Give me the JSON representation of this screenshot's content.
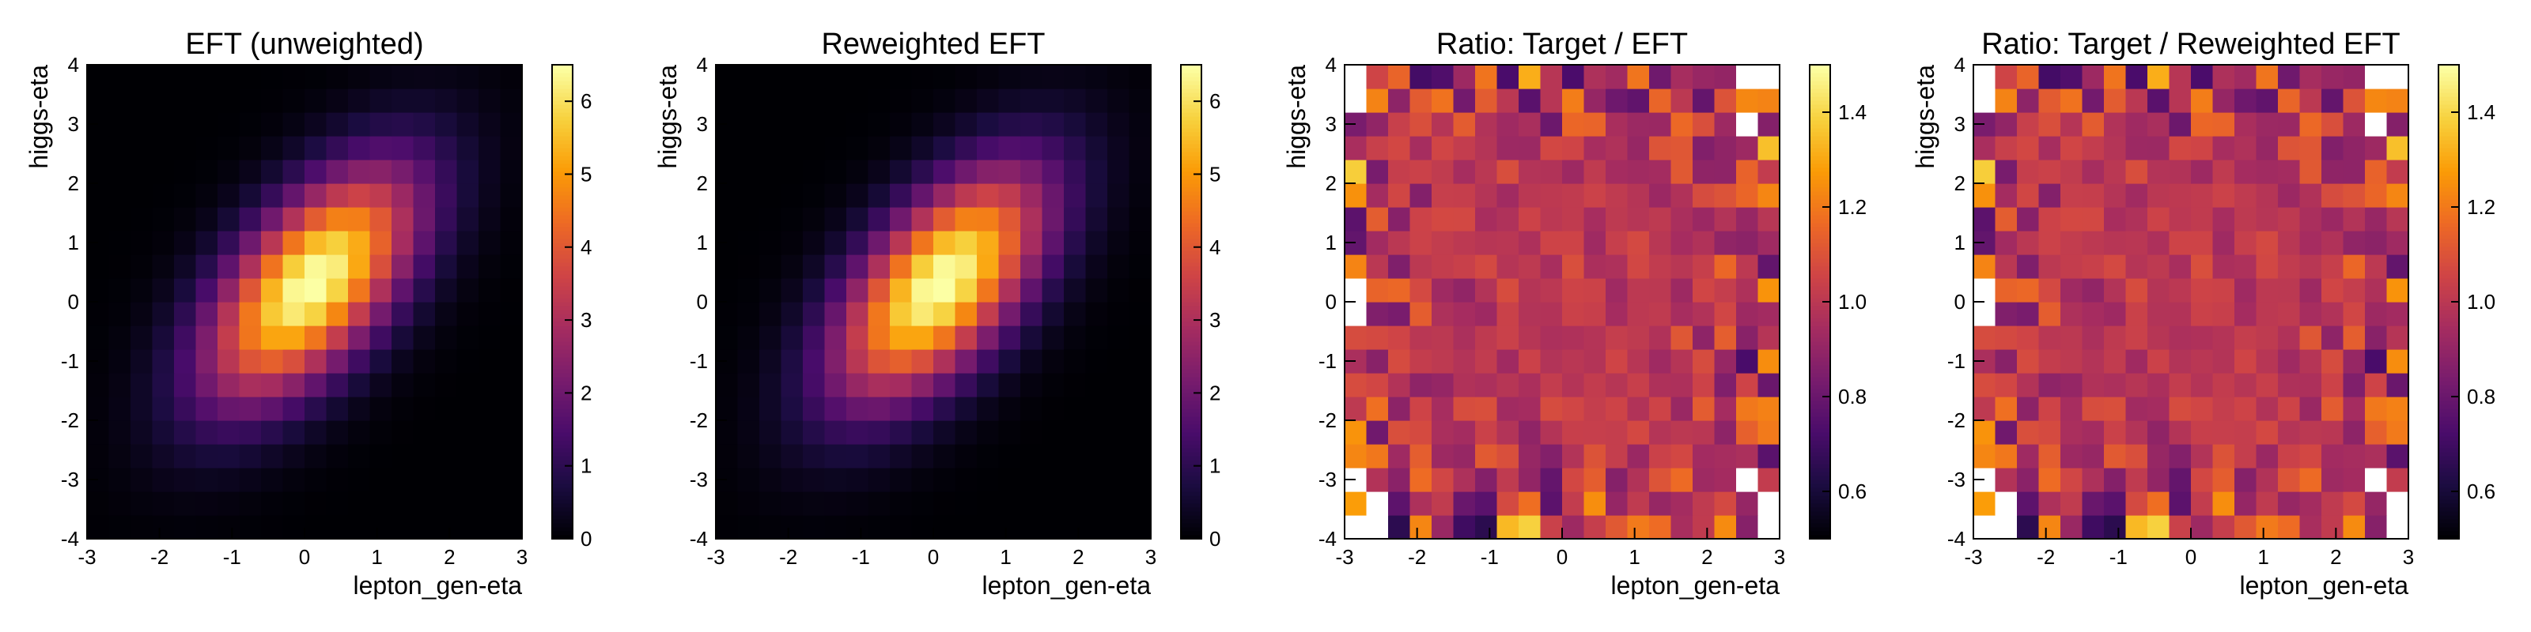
{
  "figure": {
    "colormap": "inferno",
    "colormap_stops": [
      "#000004",
      "#1b0c41",
      "#4a0c6b",
      "#781c6d",
      "#a52c60",
      "#cf4446",
      "#ed6925",
      "#fb9b06",
      "#f7d13d",
      "#fcffa4"
    ],
    "outside_range_color": "#ffffff"
  },
  "chart_data": [
    {
      "type": "heatmap",
      "title": "EFT (unweighted)",
      "xlabel": "lepton_gen-eta",
      "ylabel": "higgs-eta",
      "xlim": [
        -3,
        3
      ],
      "ylim": [
        -4,
        4
      ],
      "xticks": [
        -3,
        -2,
        -1,
        0,
        1,
        2,
        3
      ],
      "yticks": [
        -4,
        -3,
        -2,
        -1,
        0,
        1,
        2,
        3,
        4
      ],
      "bins": {
        "nx": 20,
        "ny": 20
      },
      "zlim": [
        0,
        6.5
      ],
      "colorbar_ticks": [
        0,
        1,
        2,
        3,
        4,
        5,
        6
      ],
      "model": "correlated_gaussian",
      "peak_value": 6.6,
      "mean_x": 0.1,
      "mean_y": 0.3,
      "sigma_x": 1.0,
      "sigma_y": 1.35,
      "rho": 0.6
    },
    {
      "type": "heatmap",
      "title": "Reweighted EFT",
      "xlabel": "lepton_gen-eta",
      "ylabel": "higgs-eta",
      "xlim": [
        -3,
        3
      ],
      "ylim": [
        -4,
        4
      ],
      "xticks": [
        -3,
        -2,
        -1,
        0,
        1,
        2,
        3
      ],
      "yticks": [
        -4,
        -3,
        -2,
        -1,
        0,
        1,
        2,
        3,
        4
      ],
      "bins": {
        "nx": 20,
        "ny": 20
      },
      "zlim": [
        0,
        6.5
      ],
      "colorbar_ticks": [
        0,
        1,
        2,
        3,
        4,
        5,
        6
      ],
      "model": "correlated_gaussian",
      "peak_value": 6.6,
      "mean_x": 0.1,
      "mean_y": 0.3,
      "sigma_x": 1.0,
      "sigma_y": 1.35,
      "rho": 0.6
    },
    {
      "type": "heatmap",
      "title": "Ratio: Target / EFT",
      "xlabel": "lepton_gen-eta",
      "ylabel": "higgs-eta",
      "xlim": [
        -3,
        3
      ],
      "ylim": [
        -4,
        4
      ],
      "xticks": [
        -3,
        -2,
        -1,
        0,
        1,
        2,
        3
      ],
      "yticks": [
        -4,
        -3,
        -2,
        -1,
        0,
        1,
        2,
        3,
        4
      ],
      "bins": {
        "nx": 20,
        "ny": 20
      },
      "zlim": [
        0.5,
        1.5
      ],
      "colorbar_ticks": [
        0.6,
        0.8,
        1.0,
        1.2,
        1.4
      ],
      "model": "ratio_noise",
      "center_value": 1.0,
      "noise_core": 0.05,
      "noise_edge": 0.45,
      "seed": 7
    },
    {
      "type": "heatmap",
      "title": "Ratio: Target / Reweighted EFT",
      "xlabel": "lepton_gen-eta",
      "ylabel": "higgs-eta",
      "xlim": [
        -3,
        3
      ],
      "ylim": [
        -4,
        4
      ],
      "xticks": [
        -3,
        -2,
        -1,
        0,
        1,
        2,
        3
      ],
      "yticks": [
        -4,
        -3,
        -2,
        -1,
        0,
        1,
        2,
        3,
        4
      ],
      "bins": {
        "nx": 20,
        "ny": 20
      },
      "zlim": [
        0.5,
        1.5
      ],
      "colorbar_ticks": [
        0.6,
        0.8,
        1.0,
        1.2,
        1.4
      ],
      "model": "ratio_noise",
      "center_value": 1.0,
      "noise_core": 0.05,
      "noise_edge": 0.45,
      "seed": 7
    }
  ]
}
